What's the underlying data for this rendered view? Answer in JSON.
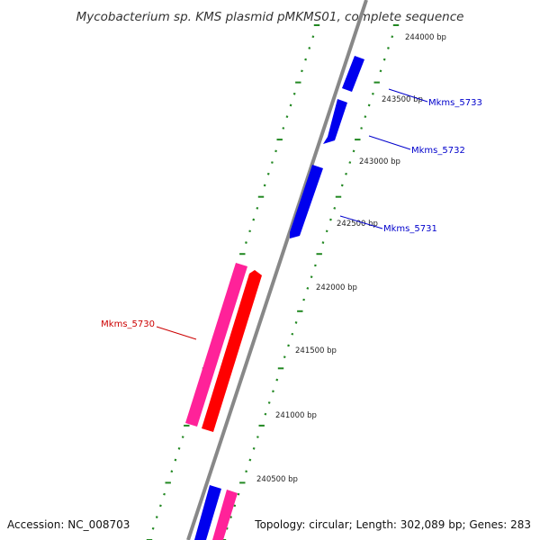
{
  "title": "Mycobacterium sp. KMS plasmid pMKMS01, complete sequence",
  "footer": {
    "accession": "Accession: NC_008703",
    "summary": "Topology: circular; Length: 302,089 bp; Genes: 283"
  },
  "ticks": [
    {
      "label": "244000 bp",
      "pos": 244000
    },
    {
      "label": "243500 bp",
      "pos": 243500
    },
    {
      "label": "243000 bp",
      "pos": 243000
    },
    {
      "label": "242500 bp",
      "pos": 242500
    },
    {
      "label": "242000 bp",
      "pos": 242000
    },
    {
      "label": "241500 bp",
      "pos": 241500
    },
    {
      "label": "241000 bp",
      "pos": 241000
    },
    {
      "label": "240500 bp",
      "pos": 240500
    }
  ],
  "genes": [
    {
      "label": "Mkms_5733",
      "color": "#0000cc"
    },
    {
      "label": "Mkms_5732",
      "color": "#0000cc"
    },
    {
      "label": "Mkms_5731",
      "color": "#0000cc"
    },
    {
      "label": "Mkms_5730",
      "color": "#cc0000"
    }
  ],
  "colors": {
    "backbone": "#888888",
    "forward_cds": "#0000ee",
    "reverse_cds": "#ff0000",
    "rna_feature": "#ff2299",
    "dot_track": "#228822"
  }
}
